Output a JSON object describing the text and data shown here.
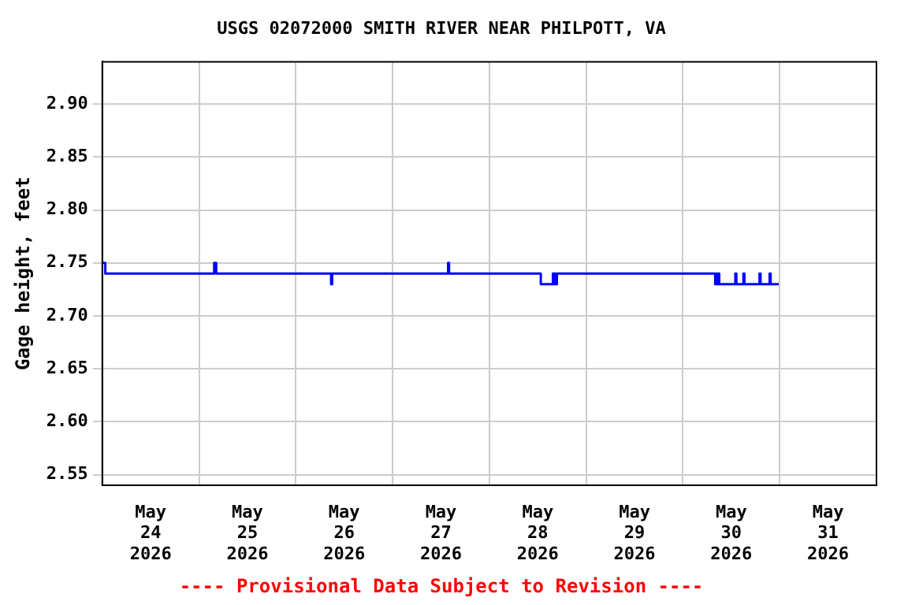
{
  "chart_data": {
    "type": "step",
    "title": "USGS 02072000 SMITH RIVER NEAR PHILPOTT, VA",
    "ylabel": "Gage height, feet",
    "annotations": [
      "---- Provisional Data Subject to Revision ----"
    ],
    "series": [
      {
        "color": "#0000ff",
        "x": [
          "2026-05-24T00:00",
          "2026-05-24T00:45",
          "2026-05-25T03:45",
          "2026-05-25T04:15",
          "2026-05-26T08:45",
          "2026-05-26T09:00",
          "2026-05-27T13:45",
          "2026-05-27T14:00",
          "2026-05-28T12:45",
          "2026-05-28T15:45",
          "2026-05-28T16:00",
          "2026-05-28T16:15",
          "2026-05-28T16:30",
          "2026-05-28T16:45",
          "2026-05-30T08:00",
          "2026-05-30T08:15",
          "2026-05-30T08:30",
          "2026-05-30T08:45",
          "2026-05-30T09:00",
          "2026-05-30T13:00",
          "2026-05-30T13:15",
          "2026-05-30T15:00",
          "2026-05-30T15:15",
          "2026-05-30T19:00",
          "2026-05-30T19:15",
          "2026-05-30T21:30",
          "2026-05-30T21:45",
          "2026-05-30T23:45"
        ],
        "values": [
          2.75,
          2.74,
          2.75,
          2.74,
          2.73,
          2.74,
          2.75,
          2.74,
          2.73,
          2.74,
          2.73,
          2.74,
          2.73,
          2.74,
          2.73,
          2.74,
          2.73,
          2.74,
          2.73,
          2.74,
          2.73,
          2.74,
          2.73,
          2.74,
          2.73,
          2.74,
          2.73,
          2.73
        ]
      }
    ],
    "xlim": [
      "2026-05-24T00:00",
      "2026-06-01T00:00"
    ],
    "xticks": [
      {
        "value": "2026-05-24T12:00",
        "label": "May 24 2026"
      },
      {
        "value": "2026-05-25T00:00",
        "label": null
      },
      {
        "value": "2026-05-25T12:00",
        "label": "May 25 2026"
      },
      {
        "value": "2026-05-26T00:00",
        "label": null
      },
      {
        "value": "2026-05-26T12:00",
        "label": "May 26 2026"
      },
      {
        "value": "2026-05-27T00:00",
        "label": null
      },
      {
        "value": "2026-05-27T12:00",
        "label": "May 27 2026"
      },
      {
        "value": "2026-05-28T00:00",
        "label": null
      },
      {
        "value": "2026-05-28T12:00",
        "label": "May 28 2026"
      },
      {
        "value": "2026-05-29T00:00",
        "label": null
      },
      {
        "value": "2026-05-29T12:00",
        "label": "May 29 2026"
      },
      {
        "value": "2026-05-30T00:00",
        "label": null
      },
      {
        "value": "2026-05-30T12:00",
        "label": "May 30 2026"
      },
      {
        "value": "2026-05-31T00:00",
        "label": null
      },
      {
        "value": "2026-05-31T12:00",
        "label": "May 31 2026"
      }
    ],
    "ylim": [
      2.54,
      2.94
    ],
    "yticks": [
      {
        "value": 2.55,
        "label": "2.55"
      },
      {
        "value": 2.6,
        "label": "2.60"
      },
      {
        "value": 2.65,
        "label": "2.65"
      },
      {
        "value": 2.7,
        "label": "2.70"
      },
      {
        "value": 2.75,
        "label": "2.75"
      },
      {
        "value": 2.8,
        "label": "2.80"
      },
      {
        "value": 2.85,
        "label": "2.85"
      },
      {
        "value": 2.9,
        "label": "2.90"
      }
    ],
    "grid": true,
    "legend": false
  }
}
